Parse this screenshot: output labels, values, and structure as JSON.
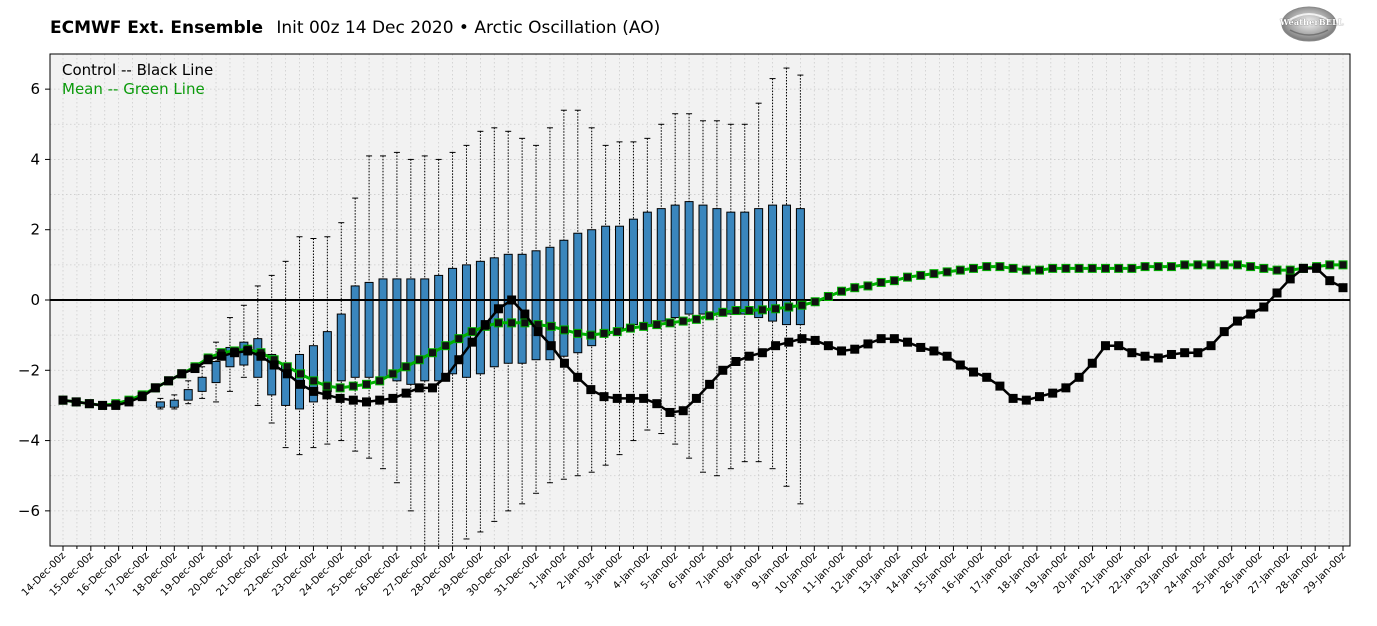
{
  "header": {
    "title": "ECMWF Ext. Ensemble",
    "subtitle": "Init 00z 14 Dec 2020 • Arctic Oscillation (AO)"
  },
  "logo": {
    "text": "WeatherBELL"
  },
  "legend": {
    "control": "Control -- Black Line",
    "mean": "Mean -- Green Line"
  },
  "colors": {
    "box": "#3a86bd",
    "control": "#000000",
    "mean": "#00b000",
    "legend_mean": "#0b9a0b",
    "zero_line": "#000000",
    "plot_bg": "#f2f2f2"
  },
  "chart_data": {
    "type": "box",
    "title": "ECMWF Ext. Ensemble",
    "subtitle": "Init 00z 14 Dec 2020 • Arctic Oscillation (AO)",
    "xlabel": "",
    "ylabel": "",
    "ylim": [
      -7,
      7
    ],
    "yticks": [
      -6,
      -4,
      -2,
      0,
      2,
      4,
      6
    ],
    "grid": true,
    "legend_position": "top-left",
    "x_labels": [
      "14-Dec-00z",
      "15-Dec-00z",
      "16-Dec-00z",
      "17-Dec-00z",
      "18-Dec-00z",
      "19-Dec-00z",
      "20-Dec-00z",
      "21-Dec-00z",
      "22-Dec-00z",
      "23-Dec-00z",
      "24-Dec-00z",
      "25-Dec-00z",
      "26-Dec-00z",
      "27-Dec-00z",
      "28-Dec-00z",
      "29-Dec-00z",
      "30-Dec-00z",
      "31-Dec-00z",
      "1-Jan-00z",
      "2-Jan-00z",
      "3-Jan-00z",
      "4-Jan-00z",
      "5-Jan-00z",
      "6-Jan-00z",
      "7-Jan-00z",
      "8-Jan-00z",
      "9-Jan-00z",
      "10-Jan-00z",
      "11-Jan-00z",
      "12-Jan-00z",
      "13-Jan-00z",
      "14-Jan-00z",
      "15-Jan-00z",
      "16-Jan-00z",
      "17-Jan-00z",
      "18-Jan-00z",
      "19-Jan-00z",
      "20-Jan-00z",
      "21-Jan-00z",
      "22-Jan-00z",
      "23-Jan-00z",
      "24-Jan-00z",
      "25-Jan-00z",
      "26-Jan-00z",
      "27-Jan-00z",
      "28-Jan-00z",
      "29-Jan-00z"
    ],
    "control": [
      -2.85,
      -2.9,
      -2.95,
      -3.0,
      -3.0,
      -2.9,
      -2.75,
      -2.5,
      -2.3,
      -2.1,
      -1.95,
      -1.7,
      -1.6,
      -1.5,
      -1.45,
      -1.6,
      -1.85,
      -2.1,
      -2.4,
      -2.6,
      -2.7,
      -2.8,
      -2.85,
      -2.9,
      -2.85,
      -2.8,
      -2.65,
      -2.5,
      -2.5,
      -2.2,
      -1.7,
      -1.2,
      -0.7,
      -0.25,
      0.0,
      -0.4,
      -0.9,
      -1.3,
      -1.8,
      -2.2,
      -2.55,
      -2.75,
      -2.8,
      -2.8,
      -2.8,
      -2.95,
      -3.2,
      -3.15,
      -2.8,
      -2.4,
      -2.0,
      -1.75,
      -1.6,
      -1.5,
      -1.3,
      -1.2,
      -1.1,
      -1.15,
      -1.3,
      -1.45,
      -1.4,
      -1.25,
      -1.1,
      -1.1,
      -1.2,
      -1.35,
      -1.45,
      -1.6,
      -1.85,
      -2.05,
      -2.2,
      -2.45,
      -2.8,
      -2.85,
      -2.75,
      -2.65,
      -2.5,
      -2.2,
      -1.8,
      -1.3,
      -1.3,
      -1.5,
      -1.6,
      -1.65,
      -1.55,
      -1.5,
      -1.5,
      -1.3,
      -0.9,
      -0.6,
      -0.4,
      -0.2,
      0.2,
      0.6,
      0.9,
      0.9,
      0.55,
      0.35
    ],
    "mean": [
      -2.85,
      -2.9,
      -2.95,
      -3.0,
      -2.95,
      -2.85,
      -2.7,
      -2.5,
      -2.3,
      -2.1,
      -1.9,
      -1.65,
      -1.5,
      -1.45,
      -1.4,
      -1.5,
      -1.7,
      -1.9,
      -2.1,
      -2.3,
      -2.45,
      -2.5,
      -2.45,
      -2.4,
      -2.3,
      -2.1,
      -1.9,
      -1.7,
      -1.5,
      -1.3,
      -1.1,
      -0.9,
      -0.75,
      -0.65,
      -0.65,
      -0.65,
      -0.7,
      -0.75,
      -0.85,
      -0.95,
      -1.0,
      -0.95,
      -0.9,
      -0.8,
      -0.75,
      -0.7,
      -0.65,
      -0.6,
      -0.55,
      -0.45,
      -0.35,
      -0.3,
      -0.3,
      -0.28,
      -0.25,
      -0.2,
      -0.15,
      -0.05,
      0.1,
      0.25,
      0.35,
      0.4,
      0.5,
      0.55,
      0.65,
      0.7,
      0.75,
      0.8,
      0.85,
      0.9,
      0.95,
      0.95,
      0.9,
      0.85,
      0.85,
      0.9,
      0.9,
      0.9,
      0.9,
      0.9,
      0.9,
      0.9,
      0.95,
      0.95,
      0.95,
      1.0,
      1.0,
      1.0,
      1.0,
      1.0,
      0.95,
      0.9,
      0.85,
      0.85,
      0.9,
      0.95,
      1.0,
      1.0
    ],
    "boxes": [
      {
        "min": -3.1,
        "q1": -3.05,
        "q3": -2.9,
        "max": -2.8
      },
      {
        "min": -3.1,
        "q1": -3.05,
        "q3": -2.85,
        "max": -2.7
      },
      {
        "min": -2.95,
        "q1": -2.85,
        "q3": -2.55,
        "max": -2.3
      },
      {
        "min": -2.8,
        "q1": -2.6,
        "q3": -2.2,
        "max": -1.9
      },
      {
        "min": -2.9,
        "q1": -2.35,
        "q3": -1.75,
        "max": -1.2
      },
      {
        "min": -2.6,
        "q1": -1.9,
        "q3": -1.35,
        "max": -0.5
      },
      {
        "min": -2.2,
        "q1": -1.85,
        "q3": -1.2,
        "max": -0.15
      },
      {
        "min": -3.0,
        "q1": -2.2,
        "q3": -1.1,
        "max": 0.4
      },
      {
        "min": -3.5,
        "q1": -2.7,
        "q3": -1.55,
        "max": 0.7
      },
      {
        "min": -4.2,
        "q1": -3.0,
        "q3": -1.8,
        "max": 1.1
      },
      {
        "min": -4.4,
        "q1": -3.1,
        "q3": -1.55,
        "max": 1.8
      },
      {
        "min": -4.2,
        "q1": -2.9,
        "q3": -1.3,
        "max": 1.75
      },
      {
        "min": -4.1,
        "q1": -2.6,
        "q3": -0.9,
        "max": 1.8
      },
      {
        "min": -4.0,
        "q1": -2.3,
        "q3": -0.4,
        "max": 2.2
      },
      {
        "min": -4.3,
        "q1": -2.2,
        "q3": 0.4,
        "max": 2.9
      },
      {
        "min": -4.5,
        "q1": -2.2,
        "q3": 0.5,
        "max": 4.1
      },
      {
        "min": -4.8,
        "q1": -2.2,
        "q3": 0.6,
        "max": 4.1
      },
      {
        "min": -5.2,
        "q1": -2.3,
        "q3": 0.6,
        "max": 4.2
      },
      {
        "min": -6.0,
        "q1": -2.4,
        "q3": 0.6,
        "max": 4.0
      },
      {
        "min": -7.0,
        "q1": -2.3,
        "q3": 0.6,
        "max": 4.1
      },
      {
        "min": -7.0,
        "q1": -2.3,
        "q3": 0.7,
        "max": 4.0
      },
      {
        "min": -7.0,
        "q1": -2.1,
        "q3": 0.9,
        "max": 4.2
      },
      {
        "min": -6.8,
        "q1": -2.2,
        "q3": 1.0,
        "max": 4.4
      },
      {
        "min": -6.6,
        "q1": -2.1,
        "q3": 1.1,
        "max": 4.8
      },
      {
        "min": -6.3,
        "q1": -1.9,
        "q3": 1.2,
        "max": 4.9
      },
      {
        "min": -6.0,
        "q1": -1.8,
        "q3": 1.3,
        "max": 4.8
      },
      {
        "min": -5.8,
        "q1": -1.8,
        "q3": 1.3,
        "max": 4.6
      },
      {
        "min": -5.5,
        "q1": -1.7,
        "q3": 1.4,
        "max": 4.4
      },
      {
        "min": -5.2,
        "q1": -1.7,
        "q3": 1.5,
        "max": 4.9
      },
      {
        "min": -5.1,
        "q1": -1.6,
        "q3": 1.7,
        "max": 5.4
      },
      {
        "min": -5.0,
        "q1": -1.5,
        "q3": 1.9,
        "max": 5.4
      },
      {
        "min": -4.9,
        "q1": -1.3,
        "q3": 2.0,
        "max": 4.9
      },
      {
        "min": -4.7,
        "q1": -1.0,
        "q3": 2.1,
        "max": 4.4
      },
      {
        "min": -4.4,
        "q1": -0.8,
        "q3": 2.1,
        "max": 4.5
      },
      {
        "min": -4.0,
        "q1": -0.7,
        "q3": 2.3,
        "max": 4.5
      },
      {
        "min": -3.7,
        "q1": -0.7,
        "q3": 2.5,
        "max": 4.6
      },
      {
        "min": -3.8,
        "q1": -0.6,
        "q3": 2.6,
        "max": 5.0
      },
      {
        "min": -4.1,
        "q1": -0.5,
        "q3": 2.7,
        "max": 5.3
      },
      {
        "min": -4.5,
        "q1": -0.4,
        "q3": 2.8,
        "max": 5.3
      },
      {
        "min": -4.9,
        "q1": -0.4,
        "q3": 2.7,
        "max": 5.1
      },
      {
        "min": -5.0,
        "q1": -0.4,
        "q3": 2.6,
        "max": 5.1
      },
      {
        "min": -4.8,
        "q1": -0.4,
        "q3": 2.5,
        "max": 5.0
      },
      {
        "min": -4.6,
        "q1": -0.4,
        "q3": 2.5,
        "max": 5.0
      },
      {
        "min": -4.6,
        "q1": -0.5,
        "q3": 2.6,
        "max": 5.6
      },
      {
        "min": -4.8,
        "q1": -0.6,
        "q3": 2.7,
        "max": 6.3
      },
      {
        "min": -5.3,
        "q1": -0.7,
        "q3": 2.7,
        "max": 6.6
      },
      {
        "min": -5.8,
        "q1": -0.7,
        "q3": 2.6,
        "max": 6.4
      }
    ]
  }
}
